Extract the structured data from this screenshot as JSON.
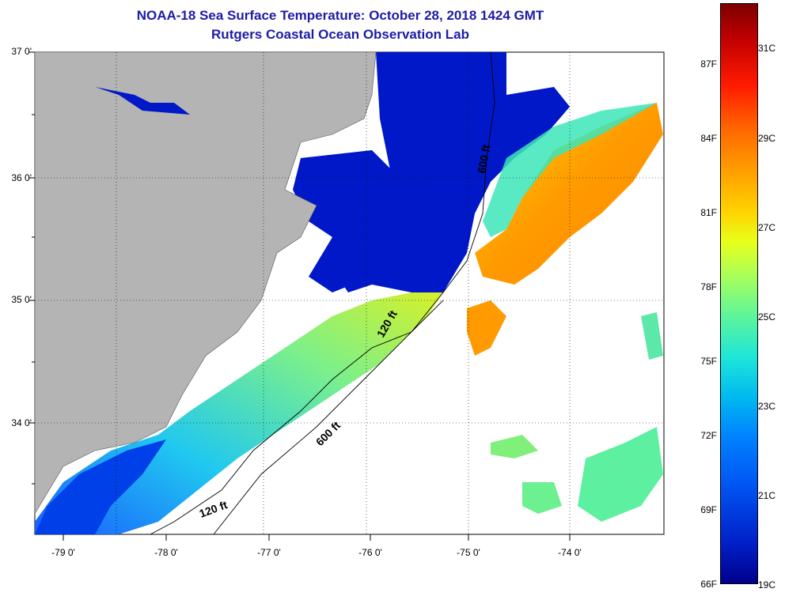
{
  "title": "NOAA-18 Sea Surface Temperature:  October 28, 2018 1424 GMT",
  "subtitle": "Rutgers Coastal Ocean Observation Lab",
  "axes": {
    "latitudes": [
      {
        "label": "37 0'",
        "value": 37.0
      },
      {
        "label": "36 0'",
        "value": 36.0
      },
      {
        "label": "35 0'",
        "value": 35.0
      },
      {
        "label": "34 0'",
        "value": 34.0
      }
    ],
    "longitudes": [
      {
        "label": "-79 0'",
        "value": -79.0
      },
      {
        "label": "-78 0'",
        "value": -78.0
      },
      {
        "label": "-77 0'",
        "value": -77.0
      },
      {
        "label": "-76 0'",
        "value": -76.0
      },
      {
        "label": "-75 0'",
        "value": -75.0
      },
      {
        "label": "-74 0'",
        "value": -74.0
      }
    ]
  },
  "contours": [
    {
      "label": "600 ft"
    },
    {
      "label": "600 ft"
    },
    {
      "label": "120 ft"
    },
    {
      "label": "120 ft"
    }
  ],
  "colorbar": {
    "fahrenheit": [
      "87F",
      "84F",
      "81F",
      "78F",
      "75F",
      "72F",
      "69F",
      "66F"
    ],
    "celsius": [
      "31C",
      "29C",
      "27C",
      "25C",
      "23C",
      "21C",
      "19C"
    ]
  },
  "colors": {
    "land": "#b4b4b4",
    "title": "#1c1ca8",
    "cold": "#0018c8",
    "warm": "#ff9a00"
  }
}
